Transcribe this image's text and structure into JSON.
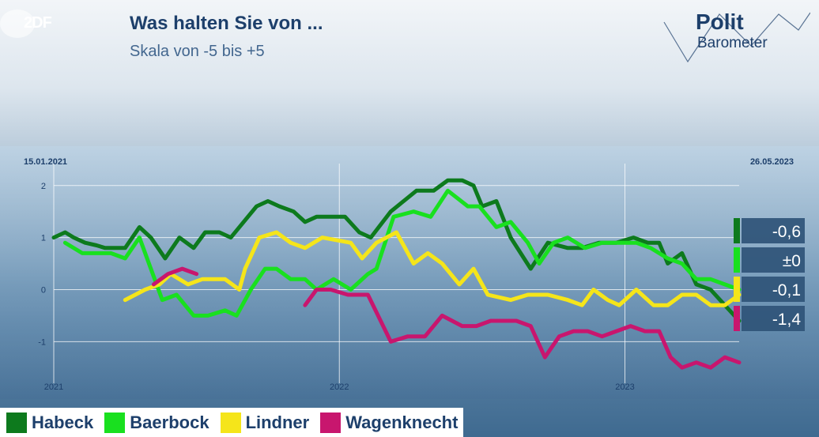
{
  "header": {
    "broadcaster_logo": "2DF",
    "title": "Was halten Sie von ...",
    "subtitle": "Skala von -5 bis +5",
    "brand_line1": "Polit",
    "brand_line2": "Barometer"
  },
  "chart_data": {
    "type": "line",
    "title": "Was halten Sie von ...",
    "subtitle": "Skala von -5 bis +5",
    "date_start_label": "15.01.2021",
    "date_end_label": "26.05.2023",
    "ylim": [
      -1.8,
      2.3
    ],
    "yticks": [
      2,
      1,
      0,
      -1
    ],
    "ytick_labels": [
      "2",
      "1",
      "0",
      "-1"
    ],
    "xlim": [
      2021.0,
      2023.4
    ],
    "xticks": [
      2021,
      2022,
      2023
    ],
    "xtick_labels": [
      "2021",
      "2022",
      "2023"
    ],
    "series": [
      {
        "name": "Habeck",
        "color": "#0d7a1d",
        "end_label": "-0,6",
        "points": [
          [
            2021.0,
            1.0
          ],
          [
            2021.04,
            1.1
          ],
          [
            2021.07,
            1.0
          ],
          [
            2021.11,
            0.9
          ],
          [
            2021.15,
            0.85
          ],
          [
            2021.18,
            0.8
          ],
          [
            2021.25,
            0.8
          ],
          [
            2021.3,
            1.2
          ],
          [
            2021.34,
            1.0
          ],
          [
            2021.39,
            0.6
          ],
          [
            2021.44,
            1.0
          ],
          [
            2021.49,
            0.8
          ],
          [
            2021.53,
            1.1
          ],
          [
            2021.58,
            1.1
          ],
          [
            2021.62,
            1.0
          ],
          [
            2021.65,
            1.2
          ],
          [
            2021.71,
            1.6
          ],
          [
            2021.75,
            1.7
          ],
          [
            2021.79,
            1.6
          ],
          [
            2021.84,
            1.5
          ],
          [
            2021.88,
            1.3
          ],
          [
            2021.92,
            1.4
          ],
          [
            2021.97,
            1.4
          ],
          [
            2022.02,
            1.4
          ],
          [
            2022.07,
            1.1
          ],
          [
            2022.11,
            1.0
          ],
          [
            2022.18,
            1.5
          ],
          [
            2022.27,
            1.9
          ],
          [
            2022.33,
            1.9
          ],
          [
            2022.38,
            2.1
          ],
          [
            2022.43,
            2.1
          ],
          [
            2022.47,
            2.0
          ],
          [
            2022.5,
            1.6
          ],
          [
            2022.55,
            1.7
          ],
          [
            2022.6,
            1.0
          ],
          [
            2022.67,
            0.4
          ],
          [
            2022.73,
            0.9
          ],
          [
            2022.8,
            0.8
          ],
          [
            2022.85,
            0.8
          ],
          [
            2022.91,
            0.9
          ],
          [
            2022.97,
            0.9
          ],
          [
            2023.03,
            1.0
          ],
          [
            2023.08,
            0.9
          ],
          [
            2023.12,
            0.9
          ],
          [
            2023.15,
            0.5
          ],
          [
            2023.2,
            0.7
          ],
          [
            2023.25,
            0.1
          ],
          [
            2023.3,
            0.0
          ],
          [
            2023.35,
            -0.3
          ],
          [
            2023.4,
            -0.6
          ]
        ]
      },
      {
        "name": "Baerbock",
        "color": "#19e01f",
        "end_label": "±0",
        "points": [
          [
            2021.04,
            0.9
          ],
          [
            2021.1,
            0.7
          ],
          [
            2021.15,
            0.7
          ],
          [
            2021.2,
            0.7
          ],
          [
            2021.25,
            0.6
          ],
          [
            2021.3,
            1.0
          ],
          [
            2021.38,
            -0.2
          ],
          [
            2021.43,
            -0.1
          ],
          [
            2021.49,
            -0.5
          ],
          [
            2021.54,
            -0.5
          ],
          [
            2021.6,
            -0.4
          ],
          [
            2021.64,
            -0.5
          ],
          [
            2021.69,
            0.0
          ],
          [
            2021.74,
            0.4
          ],
          [
            2021.78,
            0.4
          ],
          [
            2021.83,
            0.2
          ],
          [
            2021.88,
            0.2
          ],
          [
            2021.92,
            0.0
          ],
          [
            2021.98,
            0.2
          ],
          [
            2022.04,
            0.0
          ],
          [
            2022.1,
            0.3
          ],
          [
            2022.13,
            0.4
          ],
          [
            2022.19,
            1.4
          ],
          [
            2022.26,
            1.5
          ],
          [
            2022.32,
            1.4
          ],
          [
            2022.38,
            1.9
          ],
          [
            2022.45,
            1.6
          ],
          [
            2022.49,
            1.6
          ],
          [
            2022.55,
            1.2
          ],
          [
            2022.6,
            1.3
          ],
          [
            2022.66,
            0.9
          ],
          [
            2022.7,
            0.5
          ],
          [
            2022.75,
            0.9
          ],
          [
            2022.8,
            1.0
          ],
          [
            2022.86,
            0.8
          ],
          [
            2022.92,
            0.9
          ],
          [
            2022.98,
            0.9
          ],
          [
            2023.04,
            0.9
          ],
          [
            2023.09,
            0.8
          ],
          [
            2023.15,
            0.6
          ],
          [
            2023.2,
            0.5
          ],
          [
            2023.25,
            0.2
          ],
          [
            2023.3,
            0.2
          ],
          [
            2023.35,
            0.1
          ],
          [
            2023.4,
            0.0
          ]
        ]
      },
      {
        "name": "Lindner",
        "color": "#f5e51a",
        "end_label": "-0,1",
        "points": [
          [
            2021.25,
            -0.2
          ],
          [
            2021.32,
            0.0
          ],
          [
            2021.37,
            0.1
          ],
          [
            2021.41,
            0.3
          ],
          [
            2021.47,
            0.1
          ],
          [
            2021.52,
            0.2
          ],
          [
            2021.6,
            0.2
          ],
          [
            2021.65,
            0.0
          ],
          [
            2021.67,
            0.4
          ],
          [
            2021.72,
            1.0
          ],
          [
            2021.78,
            1.1
          ],
          [
            2021.83,
            0.9
          ],
          [
            2021.88,
            0.8
          ],
          [
            2021.94,
            1.0
          ],
          [
            2022.04,
            0.9
          ],
          [
            2022.08,
            0.6
          ],
          [
            2022.13,
            0.9
          ],
          [
            2022.2,
            1.1
          ],
          [
            2022.26,
            0.5
          ],
          [
            2022.31,
            0.7
          ],
          [
            2022.36,
            0.5
          ],
          [
            2022.42,
            0.1
          ],
          [
            2022.47,
            0.4
          ],
          [
            2022.52,
            -0.1
          ],
          [
            2022.6,
            -0.2
          ],
          [
            2022.66,
            -0.1
          ],
          [
            2022.73,
            -0.1
          ],
          [
            2022.8,
            -0.2
          ],
          [
            2022.85,
            -0.3
          ],
          [
            2022.89,
            0.0
          ],
          [
            2022.94,
            -0.2
          ],
          [
            2022.98,
            -0.3
          ],
          [
            2023.04,
            0.0
          ],
          [
            2023.1,
            -0.3
          ],
          [
            2023.15,
            -0.3
          ],
          [
            2023.2,
            -0.1
          ],
          [
            2023.25,
            -0.1
          ],
          [
            2023.3,
            -0.3
          ],
          [
            2023.35,
            -0.3
          ],
          [
            2023.4,
            -0.1
          ]
        ]
      },
      {
        "name": "Wagenknecht",
        "color": "#c8166e",
        "end_label": "-1,4",
        "points": [
          [
            2021.35,
            0.1
          ],
          [
            2021.4,
            0.3
          ],
          [
            2021.45,
            0.4
          ],
          [
            2021.5,
            0.3
          ]
        ],
        "points_2": [
          [
            2021.88,
            -0.3
          ],
          [
            2021.92,
            0.0
          ],
          [
            2021.97,
            0.0
          ],
          [
            2022.03,
            -0.1
          ],
          [
            2022.1,
            -0.1
          ],
          [
            2022.18,
            -1.0
          ],
          [
            2022.24,
            -0.9
          ],
          [
            2022.3,
            -0.9
          ],
          [
            2022.36,
            -0.5
          ],
          [
            2022.43,
            -0.7
          ],
          [
            2022.48,
            -0.7
          ],
          [
            2022.53,
            -0.6
          ],
          [
            2022.58,
            -0.6
          ],
          [
            2022.62,
            -0.6
          ],
          [
            2022.67,
            -0.7
          ],
          [
            2022.72,
            -1.3
          ],
          [
            2022.77,
            -0.9
          ],
          [
            2022.82,
            -0.8
          ],
          [
            2022.87,
            -0.8
          ],
          [
            2022.92,
            -0.9
          ],
          [
            2022.97,
            -0.8
          ],
          [
            2023.02,
            -0.7
          ],
          [
            2023.07,
            -0.8
          ],
          [
            2023.12,
            -0.8
          ],
          [
            2023.16,
            -1.3
          ],
          [
            2023.2,
            -1.5
          ],
          [
            2023.25,
            -1.4
          ],
          [
            2023.3,
            -1.5
          ],
          [
            2023.35,
            -1.3
          ],
          [
            2023.4,
            -1.4
          ]
        ]
      }
    ]
  },
  "legend": [
    {
      "label": "Habeck",
      "color": "#0d7a1d"
    },
    {
      "label": "Baerbock",
      "color": "#19e01f"
    },
    {
      "label": "Lindner",
      "color": "#f5e51a"
    },
    {
      "label": "Wagenknecht",
      "color": "#c8166e"
    }
  ]
}
